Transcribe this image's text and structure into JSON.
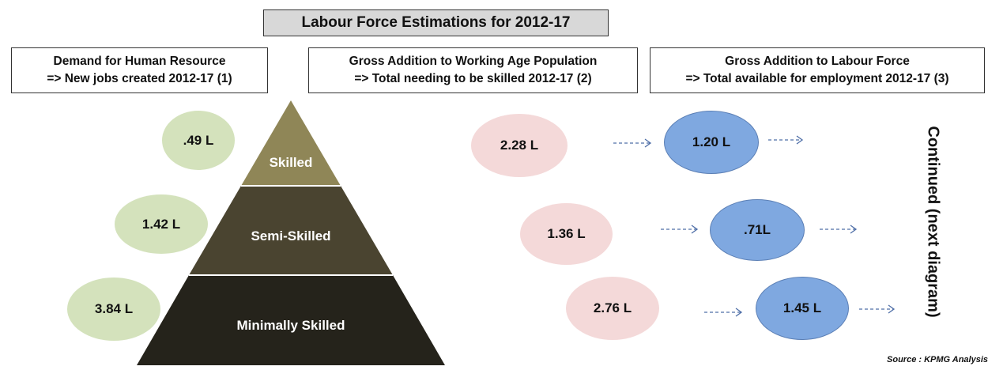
{
  "title": "Labour Force Estimations for 2012-17",
  "headers": {
    "demand": {
      "line1": "Demand for  Human Resource",
      "line2": "=> New jobs created 2012-17 (1)"
    },
    "working_age": {
      "line1": "Gross Addition to Working Age Population",
      "line2": "=> Total needing to be skilled 2012-17 (2)"
    },
    "labour_force": {
      "line1": "Gross Addition to Labour Force",
      "line2": "=> Total available for employment 2012-17 (3)"
    }
  },
  "pyramid": {
    "levels": [
      {
        "label": "Skilled",
        "color": "#8f8657"
      },
      {
        "label": "Semi-Skilled",
        "color": "#4a4430"
      },
      {
        "label": "Minimally Skilled",
        "color": "#25231b"
      }
    ]
  },
  "demand_values": [
    ".49 L",
    "1.42 L",
    "3.84 L"
  ],
  "working_age_values": [
    "2.28 L",
    "1.36 L",
    "2.76 L"
  ],
  "labour_force_values": [
    "1.20 L",
    ".71L",
    "1.45 L"
  ],
  "colors": {
    "demand_ellipse": "#d4e2bc",
    "working_age_ellipse": "#f4d9d9",
    "labour_force_ellipse": "#7fa8e0",
    "arrow": "#4f6fa8"
  },
  "continued_text": "Continued (next diagram)",
  "source": "Source : KPMG Analysis"
}
